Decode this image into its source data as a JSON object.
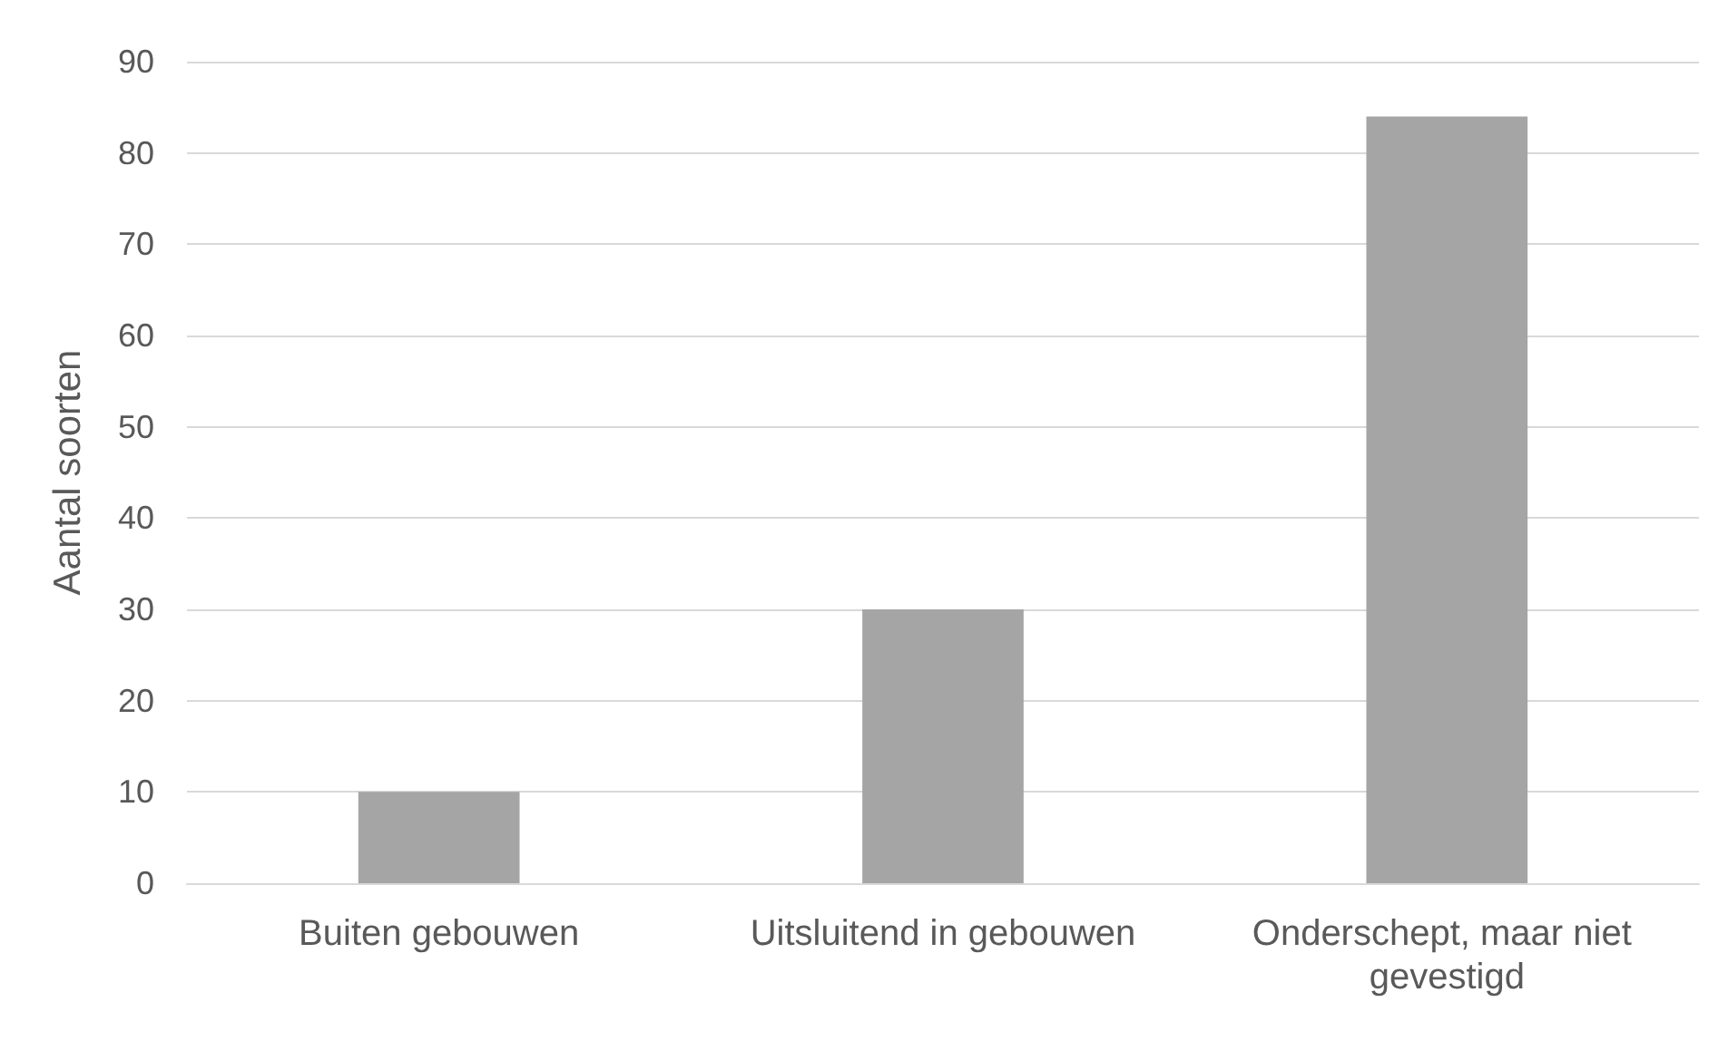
{
  "chart_data": {
    "type": "bar",
    "ylabel": "Aantal soorten",
    "categories": [
      "Buiten gebouwen",
      "Uitsluitend in gebouwen",
      "Onderschept, maar niet gevestigd"
    ],
    "values": [
      10,
      30,
      84
    ],
    "color": "#a5a5a5",
    "ylim": [
      0,
      90
    ],
    "yticks": [
      0,
      10,
      20,
      30,
      40,
      50,
      60,
      70,
      80,
      90
    ],
    "grid": "y"
  }
}
